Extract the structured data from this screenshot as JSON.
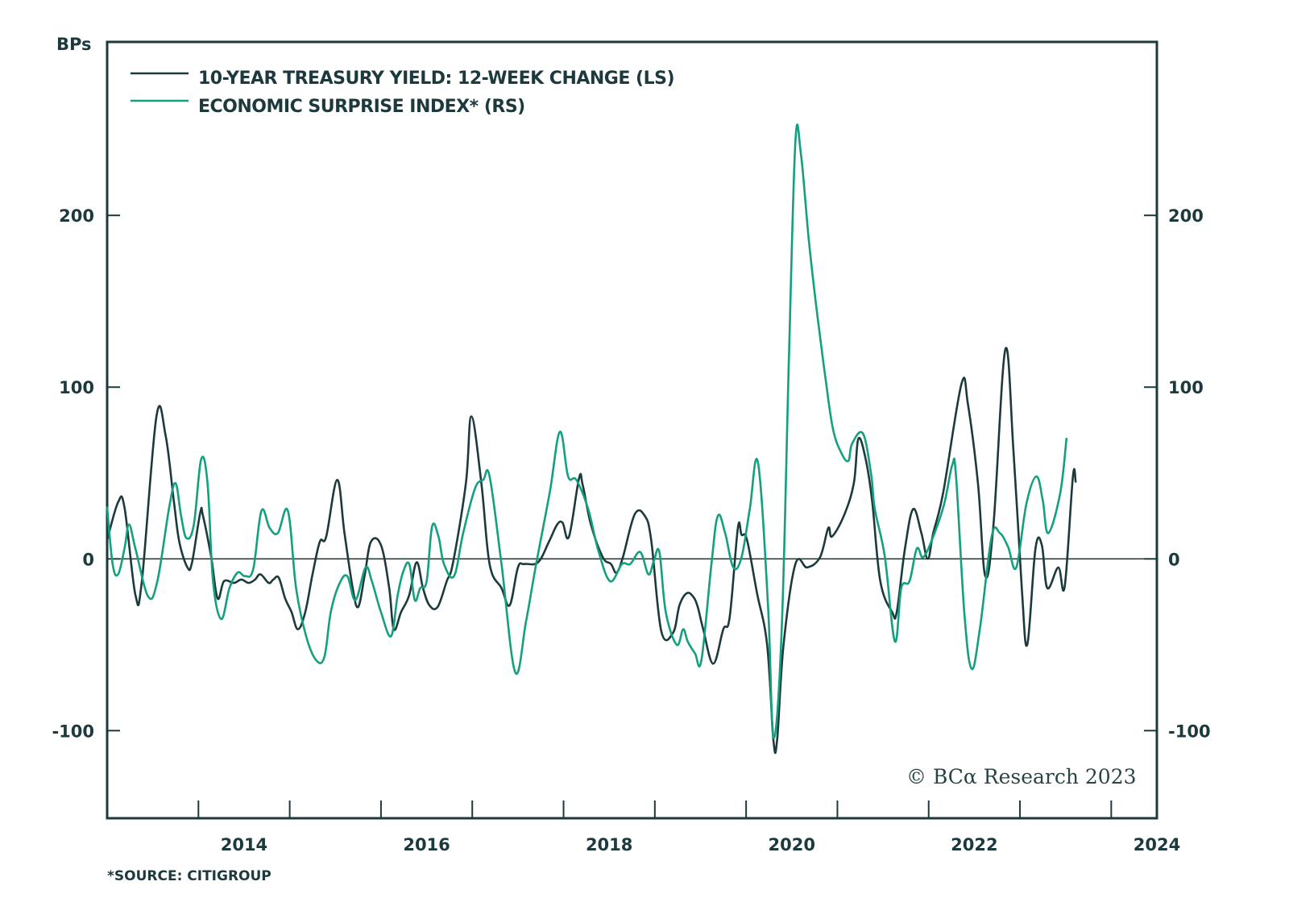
{
  "chart_data": {
    "type": "line",
    "title": "",
    "ylabel_left": "BPs",
    "xlabel": "",
    "xlim": [
      2012.5,
      2024.0
    ],
    "ylim": [
      -151,
      301
    ],
    "grid": false,
    "legend_placement": "top-left",
    "x_ticks": [
      2014,
      2016,
      2018,
      2020,
      2022,
      2024
    ],
    "x_tick_labels": [
      "2014",
      "2016",
      "2018",
      "2020",
      "2022",
      "2024"
    ],
    "minor_x_ticks": [
      2013.5,
      2014.5,
      2015.5,
      2016.5,
      2017.5,
      2018.5,
      2019.5,
      2020.5,
      2021.5,
      2022.5,
      2023.5
    ],
    "y_ticks_left": [
      -100,
      0,
      100,
      200
    ],
    "y_tick_labels_left": [
      "-100",
      "0",
      "100",
      "200"
    ],
    "y_ticks_right": [
      -100,
      0,
      100,
      200
    ],
    "y_tick_labels_right": [
      "-100",
      "0",
      "100",
      "200"
    ],
    "reference_line": 0,
    "series": [
      {
        "name": "10-YEAR TREASURY YIELD:  12-WEEK CHANGE (LS)",
        "axis": "left",
        "color": "#1c3a3d",
        "points": [
          [
            2012.5,
            11
          ],
          [
            2012.62,
            33
          ],
          [
            2012.69,
            30
          ],
          [
            2012.81,
            -21
          ],
          [
            2012.88,
            -13
          ],
          [
            2013.04,
            83
          ],
          [
            2013.14,
            72
          ],
          [
            2013.23,
            34
          ],
          [
            2013.29,
            10
          ],
          [
            2013.38,
            -5
          ],
          [
            2013.43,
            -2
          ],
          [
            2013.52,
            27
          ],
          [
            2013.55,
            25
          ],
          [
            2013.64,
            1
          ],
          [
            2013.71,
            -23
          ],
          [
            2013.78,
            -13
          ],
          [
            2013.89,
            -14
          ],
          [
            2013.97,
            -12
          ],
          [
            2014.05,
            -14
          ],
          [
            2014.12,
            -12
          ],
          [
            2014.18,
            -9
          ],
          [
            2014.27,
            -14
          ],
          [
            2014.32,
            -12
          ],
          [
            2014.38,
            -11
          ],
          [
            2014.45,
            -23
          ],
          [
            2014.52,
            -31
          ],
          [
            2014.59,
            -41
          ],
          [
            2014.67,
            -31
          ],
          [
            2014.75,
            -9
          ],
          [
            2014.83,
            10
          ],
          [
            2014.9,
            13
          ],
          [
            2015.02,
            46
          ],
          [
            2015.1,
            15
          ],
          [
            2015.19,
            -17
          ],
          [
            2015.25,
            -28
          ],
          [
            2015.32,
            -10
          ],
          [
            2015.39,
            10
          ],
          [
            2015.5,
            8
          ],
          [
            2015.59,
            -17
          ],
          [
            2015.64,
            -41
          ],
          [
            2015.72,
            -31
          ],
          [
            2015.81,
            -21
          ],
          [
            2015.89,
            -2
          ],
          [
            2015.96,
            -17
          ],
          [
            2016.03,
            -27
          ],
          [
            2016.12,
            -28
          ],
          [
            2016.22,
            -13
          ],
          [
            2016.29,
            -2
          ],
          [
            2016.43,
            44
          ],
          [
            2016.49,
            83
          ],
          [
            2016.6,
            44
          ],
          [
            2016.69,
            -3
          ],
          [
            2016.82,
            -17
          ],
          [
            2016.91,
            -27
          ],
          [
            2017.0,
            -5
          ],
          [
            2017.07,
            -3
          ],
          [
            2017.22,
            -2
          ],
          [
            2017.34,
            10
          ],
          [
            2017.43,
            20
          ],
          [
            2017.49,
            21
          ],
          [
            2017.56,
            13
          ],
          [
            2017.67,
            47
          ],
          [
            2017.71,
            43
          ],
          [
            2017.8,
            20
          ],
          [
            2017.93,
            1
          ],
          [
            2018.02,
            -3
          ],
          [
            2018.08,
            -8
          ],
          [
            2018.15,
            1
          ],
          [
            2018.28,
            26
          ],
          [
            2018.39,
            25
          ],
          [
            2018.46,
            11
          ],
          [
            2018.57,
            -42
          ],
          [
            2018.7,
            -43
          ],
          [
            2018.77,
            -27
          ],
          [
            2018.85,
            -20
          ],
          [
            2018.92,
            -22
          ],
          [
            2018.97,
            -28
          ],
          [
            2019.03,
            -41
          ],
          [
            2019.14,
            -61
          ],
          [
            2019.25,
            -41
          ],
          [
            2019.32,
            -34
          ],
          [
            2019.41,
            18
          ],
          [
            2019.45,
            14
          ],
          [
            2019.51,
            11
          ],
          [
            2019.62,
            -20
          ],
          [
            2019.73,
            -50
          ],
          [
            2019.8,
            -106
          ],
          [
            2019.84,
            -105
          ],
          [
            2019.91,
            -50
          ],
          [
            2020.04,
            -3
          ],
          [
            2020.17,
            -5
          ],
          [
            2020.31,
            1
          ],
          [
            2020.4,
            18
          ],
          [
            2020.44,
            13
          ],
          [
            2020.57,
            25
          ],
          [
            2020.68,
            44
          ],
          [
            2020.73,
            70
          ],
          [
            2020.81,
            58
          ],
          [
            2020.88,
            34
          ],
          [
            2020.97,
            -13
          ],
          [
            2021.1,
            -31
          ],
          [
            2021.15,
            -31
          ],
          [
            2021.24,
            6
          ],
          [
            2021.33,
            29
          ],
          [
            2021.42,
            15
          ],
          [
            2021.49,
            0
          ],
          [
            2021.55,
            15
          ],
          [
            2021.66,
            39
          ],
          [
            2021.86,
            102
          ],
          [
            2021.93,
            90
          ],
          [
            2022.04,
            44
          ],
          [
            2022.12,
            -10
          ],
          [
            2022.21,
            20
          ],
          [
            2022.34,
            122
          ],
          [
            2022.43,
            62
          ],
          [
            2022.52,
            -17
          ],
          [
            2022.58,
            -50
          ],
          [
            2022.67,
            6
          ],
          [
            2022.74,
            8
          ],
          [
            2022.8,
            -17
          ],
          [
            2022.92,
            -5
          ],
          [
            2022.99,
            -16
          ],
          [
            2023.08,
            48
          ],
          [
            2023.11,
            45
          ]
        ]
      },
      {
        "name": "ECONOMIC SURPRISE INDEX* (RS)",
        "axis": "right",
        "color": "#13a07f",
        "points": [
          [
            2012.5,
            30
          ],
          [
            2012.56,
            -3
          ],
          [
            2012.62,
            -9
          ],
          [
            2012.69,
            6
          ],
          [
            2012.74,
            20
          ],
          [
            2012.81,
            6
          ],
          [
            2012.95,
            -22
          ],
          [
            2013.05,
            -13
          ],
          [
            2013.18,
            30
          ],
          [
            2013.25,
            44
          ],
          [
            2013.31,
            25
          ],
          [
            2013.37,
            12
          ],
          [
            2013.45,
            20
          ],
          [
            2013.53,
            58
          ],
          [
            2013.6,
            44
          ],
          [
            2013.66,
            -13
          ],
          [
            2013.75,
            -35
          ],
          [
            2013.84,
            -17
          ],
          [
            2013.93,
            -8
          ],
          [
            2014.01,
            -10
          ],
          [
            2014.1,
            -6
          ],
          [
            2014.19,
            28
          ],
          [
            2014.28,
            18
          ],
          [
            2014.37,
            15
          ],
          [
            2014.48,
            28
          ],
          [
            2014.57,
            -17
          ],
          [
            2014.68,
            -45
          ],
          [
            2014.79,
            -59
          ],
          [
            2014.88,
            -57
          ],
          [
            2014.95,
            -31
          ],
          [
            2015.04,
            -15
          ],
          [
            2015.13,
            -10
          ],
          [
            2015.22,
            -24
          ],
          [
            2015.33,
            -5
          ],
          [
            2015.4,
            -13
          ],
          [
            2015.5,
            -31
          ],
          [
            2015.61,
            -45
          ],
          [
            2015.68,
            -22
          ],
          [
            2015.74,
            -8
          ],
          [
            2015.81,
            -3
          ],
          [
            2015.87,
            -24
          ],
          [
            2015.93,
            -17
          ],
          [
            2016.0,
            -13
          ],
          [
            2016.06,
            19
          ],
          [
            2016.13,
            13
          ],
          [
            2016.19,
            -3
          ],
          [
            2016.3,
            -10
          ],
          [
            2016.4,
            15
          ],
          [
            2016.53,
            41
          ],
          [
            2016.62,
            46
          ],
          [
            2016.69,
            48
          ],
          [
            2016.82,
            -3
          ],
          [
            2016.97,
            -66
          ],
          [
            2017.09,
            -36
          ],
          [
            2017.2,
            -3
          ],
          [
            2017.35,
            39
          ],
          [
            2017.46,
            74
          ],
          [
            2017.55,
            48
          ],
          [
            2017.64,
            46
          ],
          [
            2017.77,
            29
          ],
          [
            2017.88,
            5
          ],
          [
            2018.01,
            -13
          ],
          [
            2018.14,
            -3
          ],
          [
            2018.23,
            -3
          ],
          [
            2018.34,
            4
          ],
          [
            2018.43,
            -9
          ],
          [
            2018.49,
            -1
          ],
          [
            2018.55,
            4
          ],
          [
            2018.62,
            -31
          ],
          [
            2018.74,
            -50
          ],
          [
            2018.81,
            -41
          ],
          [
            2018.86,
            -48
          ],
          [
            2018.94,
            -55
          ],
          [
            2019.01,
            -59
          ],
          [
            2019.12,
            -3
          ],
          [
            2019.19,
            25
          ],
          [
            2019.27,
            15
          ],
          [
            2019.36,
            -5
          ],
          [
            2019.45,
            1
          ],
          [
            2019.54,
            29
          ],
          [
            2019.63,
            56
          ],
          [
            2019.74,
            -27
          ],
          [
            2019.8,
            -104
          ],
          [
            2019.89,
            -41
          ],
          [
            2019.97,
            119
          ],
          [
            2020.04,
            243
          ],
          [
            2020.1,
            236
          ],
          [
            2020.19,
            184
          ],
          [
            2020.28,
            142
          ],
          [
            2020.37,
            105
          ],
          [
            2020.45,
            76
          ],
          [
            2020.54,
            62
          ],
          [
            2020.62,
            57
          ],
          [
            2020.66,
            67
          ],
          [
            2020.78,
            73
          ],
          [
            2020.87,
            49
          ],
          [
            2020.91,
            29
          ],
          [
            2021.02,
            1
          ],
          [
            2021.13,
            -48
          ],
          [
            2021.2,
            -17
          ],
          [
            2021.29,
            -13
          ],
          [
            2021.37,
            6
          ],
          [
            2021.44,
            1
          ],
          [
            2021.55,
            13
          ],
          [
            2021.67,
            32
          ],
          [
            2021.76,
            55
          ],
          [
            2021.8,
            48
          ],
          [
            2021.89,
            -31
          ],
          [
            2021.97,
            -64
          ],
          [
            2022.06,
            -41
          ],
          [
            2022.19,
            13
          ],
          [
            2022.28,
            15
          ],
          [
            2022.37,
            7
          ],
          [
            2022.46,
            -5
          ],
          [
            2022.57,
            32
          ],
          [
            2022.68,
            48
          ],
          [
            2022.75,
            34
          ],
          [
            2022.81,
            15
          ],
          [
            2022.94,
            38
          ],
          [
            2023.01,
            70
          ]
        ]
      }
    ],
    "footnote": "*SOURCE: CITIGROUP",
    "watermark": "© BCα Research 2023"
  }
}
